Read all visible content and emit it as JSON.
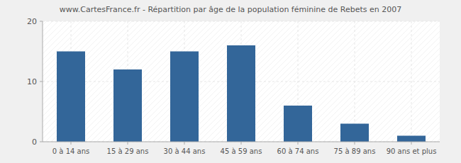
{
  "chart_data": {
    "type": "bar",
    "title": "www.CartesFrance.fr - Répartition par âge de la population féminine de Rebets en 2007",
    "categories": [
      "0 à 14 ans",
      "15 à 29 ans",
      "30 à 44 ans",
      "45 à 59 ans",
      "60 à 74 ans",
      "75 à 89 ans",
      "90 ans et plus"
    ],
    "values": [
      15,
      12,
      15,
      16,
      6,
      3,
      1
    ],
    "color": "#336699",
    "ylim": [
      0,
      20
    ],
    "yticks": [
      0,
      10,
      20
    ],
    "grid": true
  }
}
